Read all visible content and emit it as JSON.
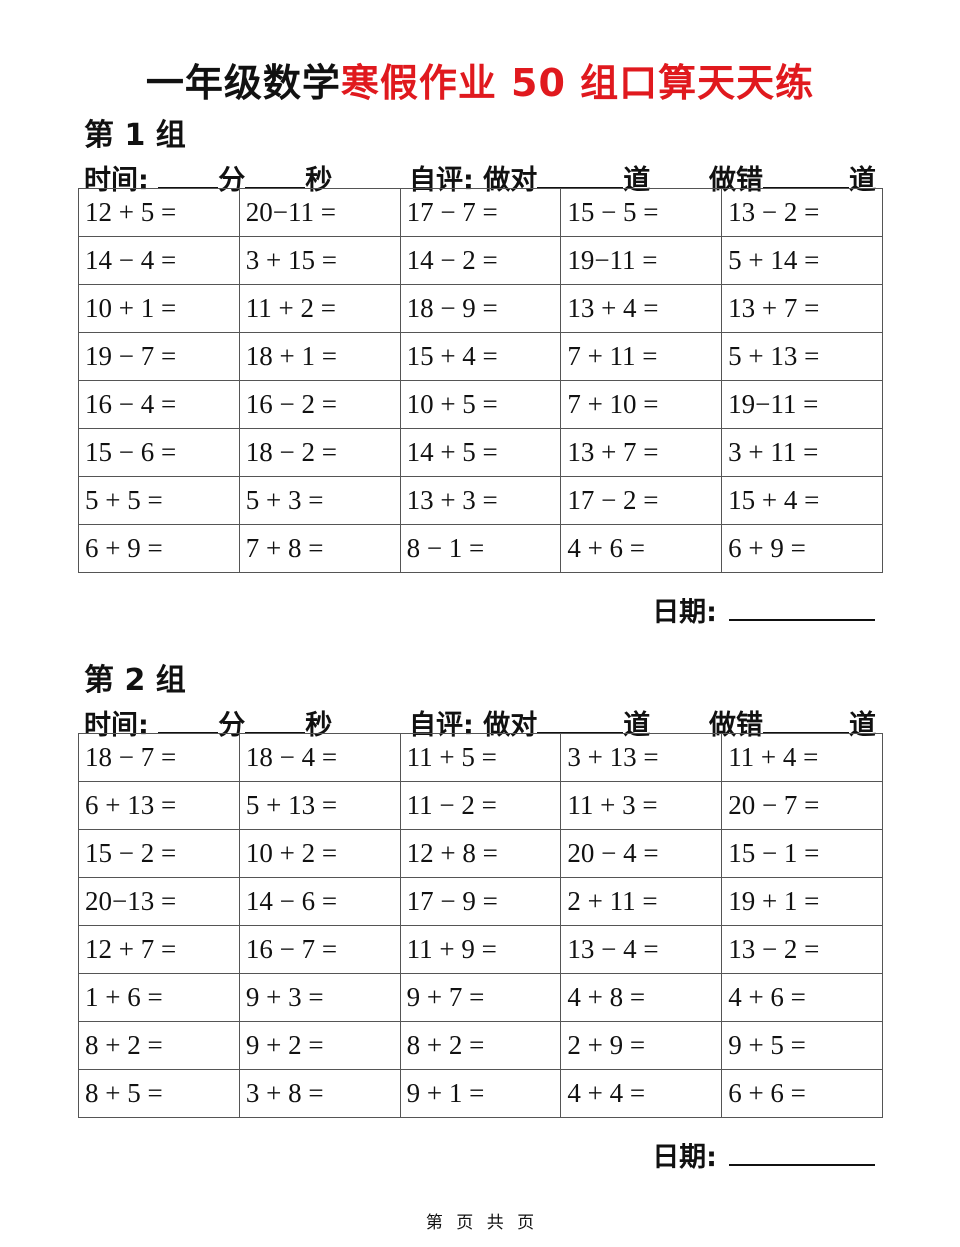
{
  "title": {
    "black": "一年级数学",
    "red": "寒假作业 50 组口算天天练",
    "red_color": "#e0191e"
  },
  "labels": {
    "time": "时间:",
    "minute": "分",
    "second": "秒",
    "self_eval": "自评: 做对",
    "dao": "道",
    "wrong": "做错",
    "date": "日期:"
  },
  "groups": [
    {
      "heading": "第 1 组",
      "rows": [
        [
          "12 + 5 =",
          "20−11 =",
          "17 − 7 =",
          "15 − 5 =",
          "13 − 2 ="
        ],
        [
          "14 − 4 =",
          "3 + 15 =",
          "14 − 2 =",
          "19−11 =",
          "5 + 14 ="
        ],
        [
          "10 + 1 =",
          "11 + 2 =",
          "18 − 9 =",
          "13 + 4 =",
          "13 + 7 ="
        ],
        [
          "19 − 7 =",
          "18 + 1 =",
          "15 + 4 =",
          "7 + 11 =",
          "5 + 13 ="
        ],
        [
          "16 − 4 =",
          "16 − 2 =",
          "10 + 5 =",
          "7 + 10 =",
          "19−11 ="
        ],
        [
          "15 − 6 =",
          "18 − 2 =",
          "14 + 5 =",
          "13 + 7 =",
          "3 + 11 ="
        ],
        [
          "5 + 5 =",
          "5 + 3 =",
          "13 + 3 =",
          "17 − 2 =",
          "15 + 4 ="
        ],
        [
          "6 + 9 =",
          "7 + 8 =",
          "8 − 1 =",
          "4 + 6 =",
          "6 + 9 ="
        ]
      ]
    },
    {
      "heading": "第 2 组",
      "rows": [
        [
          "18 − 7 =",
          "18 − 4 =",
          "11 + 5 =",
          "3 + 13 =",
          "11 + 4 ="
        ],
        [
          "6 + 13 =",
          "5 + 13 =",
          "11 − 2 =",
          "11 + 3 =",
          "20 − 7 ="
        ],
        [
          "15 − 2 =",
          "10 + 2 =",
          "12 + 8 =",
          "20 − 4 =",
          "15 − 1 ="
        ],
        [
          "20−13 =",
          "14 − 6 =",
          "17 − 9 =",
          "2 + 11 =",
          "19 + 1 ="
        ],
        [
          "12 + 7 =",
          "16 − 7 =",
          "11 + 9 =",
          "13 − 4 =",
          "13 − 2 ="
        ],
        [
          "1 + 6 =",
          "9 + 3 =",
          "9 + 7 =",
          "4 + 8 =",
          "4 + 6 ="
        ],
        [
          "8 + 2 =",
          "9 + 2 =",
          "8 + 2 =",
          "2 + 9 =",
          "9 + 5 ="
        ],
        [
          "8 + 5 =",
          "3 + 8 =",
          "9 + 1 =",
          "4 + 4 =",
          "6 + 6 ="
        ]
      ]
    }
  ],
  "footer": "第 页 共 页"
}
